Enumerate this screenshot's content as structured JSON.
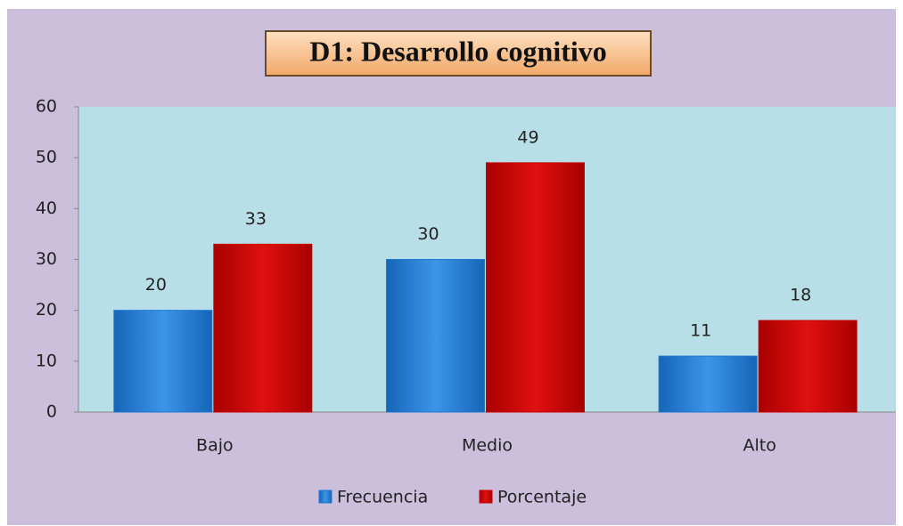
{
  "chart_data": {
    "type": "bar",
    "title": "D1: Desarrollo cognitivo",
    "categories": [
      "Bajo",
      "Medio",
      "Alto"
    ],
    "series": [
      {
        "name": "Frecuencia",
        "color": "#1f78d1",
        "values": [
          20,
          30,
          11
        ]
      },
      {
        "name": "Porcentaje",
        "color": "#cc0000",
        "values": [
          33,
          49,
          18
        ]
      }
    ],
    "ylim": [
      0,
      60
    ],
    "yticks": [
      0,
      10,
      20,
      30,
      40,
      50,
      60
    ],
    "grid": false,
    "legend": "bottom"
  }
}
